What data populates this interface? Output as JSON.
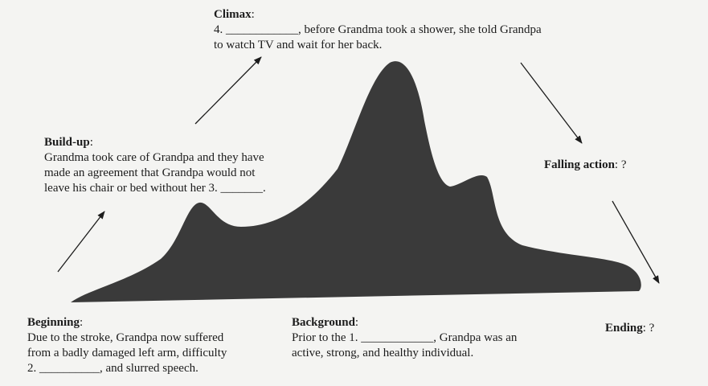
{
  "climax": {
    "heading": "Climax",
    "lines": [
      "4. ____________, before Grandma took a shower, she told Grandpa",
      "to watch TV and wait for her back."
    ]
  },
  "buildup": {
    "heading": "Build-up",
    "lines": [
      "Grandma took care of Grandpa and they have",
      "made an agreement that Grandpa would not",
      "leave his chair or bed without her 3. _______."
    ]
  },
  "falling": {
    "heading": "Falling action",
    "rest": ": ?"
  },
  "beginning": {
    "heading": "Beginning",
    "lines": [
      "Due to the stroke, Grandpa now suffered",
      "from a badly damaged left arm, difficulty",
      "2. __________, and slurred speech."
    ]
  },
  "background": {
    "heading": "Background",
    "lines": [
      "Prior to the 1. ____________, Grandpa was an",
      "active, strong, and healthy individual."
    ]
  },
  "ending": {
    "heading": "Ending",
    "rest": ": ?"
  },
  "colors": {
    "mountain": "#3a3a3a",
    "ink": "#1c1c1c",
    "paper": "#f4f4f2"
  }
}
